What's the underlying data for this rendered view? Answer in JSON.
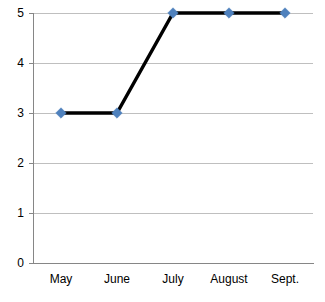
{
  "chart_data": {
    "type": "line",
    "categories": [
      "May",
      "June",
      "July",
      "August",
      "Sept."
    ],
    "values": [
      3,
      3,
      5,
      5,
      5
    ],
    "color": "#000000",
    "marker": "diamond",
    "ylim": [
      0,
      5
    ],
    "yticks": [
      0,
      1,
      2,
      3,
      4,
      5
    ],
    "grid": true
  }
}
